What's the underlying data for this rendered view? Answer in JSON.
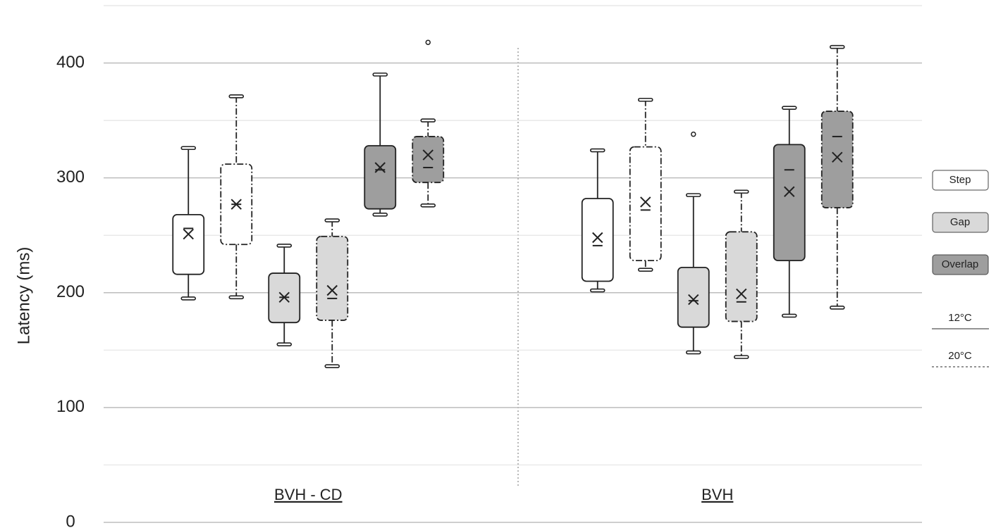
{
  "chart_data": {
    "type": "box",
    "ylabel": "Latency (ms)",
    "ylim": [
      0,
      450
    ],
    "yticks": [
      0,
      100,
      200,
      300,
      400
    ],
    "minor_yticks": [
      50,
      150,
      250,
      350,
      450
    ],
    "grid": true,
    "categories": [
      "BVH - CD",
      "BVH"
    ],
    "temperatures": [
      {
        "name": "12°C",
        "dash": "solid"
      },
      {
        "name": "20°C",
        "dash": "dash-dot"
      }
    ],
    "series": [
      {
        "name": "Step",
        "color": "#ffffff",
        "temperatures": [
          {
            "values": [
              {
                "min": 195,
                "q1": 216,
                "median": 256,
                "q3": 268,
                "max": 326,
                "mean": 251,
                "outliers": []
              },
              {
                "min": 202,
                "q1": 210,
                "median": 241,
                "q3": 282,
                "max": 324,
                "mean": 248,
                "outliers": []
              }
            ]
          },
          {
            "values": [
              {
                "min": 196,
                "q1": 242,
                "median": 277,
                "q3": 312,
                "max": 371,
                "mean": 277,
                "outliers": []
              },
              {
                "min": 220,
                "q1": 228,
                "median": 272,
                "q3": 327,
                "max": 368,
                "mean": 279,
                "outliers": []
              }
            ]
          }
        ]
      },
      {
        "name": "Gap",
        "color": "#d9d9d9",
        "temperatures": [
          {
            "values": [
              {
                "min": 155,
                "q1": 174,
                "median": 196,
                "q3": 217,
                "max": 241,
                "mean": 196,
                "outliers": []
              },
              {
                "min": 148,
                "q1": 170,
                "median": 193,
                "q3": 222,
                "max": 285,
                "mean": 194,
                "outliers": [
                  338
                ]
              }
            ]
          },
          {
            "values": [
              {
                "min": 136,
                "q1": 176,
                "median": 195,
                "q3": 249,
                "max": 263,
                "mean": 202,
                "outliers": []
              },
              {
                "min": 144,
                "q1": 175,
                "median": 192,
                "q3": 253,
                "max": 288,
                "mean": 199,
                "outliers": []
              }
            ]
          }
        ]
      },
      {
        "name": "Overlap",
        "color": "#9e9e9e",
        "temperatures": [
          {
            "values": [
              {
                "min": 268,
                "q1": 273,
                "median": 307,
                "q3": 328,
                "max": 390,
                "mean": 309,
                "outliers": []
              },
              {
                "min": 180,
                "q1": 228,
                "median": 307,
                "q3": 329,
                "max": 361,
                "mean": 288,
                "outliers": []
              }
            ]
          },
          {
            "values": [
              {
                "min": 276,
                "q1": 296,
                "median": 309,
                "q3": 336,
                "max": 350,
                "mean": 320,
                "outliers": [
                  418
                ]
              },
              {
                "min": 187,
                "q1": 274,
                "median": 336,
                "q3": 358,
                "max": 414,
                "mean": 318,
                "outliers": []
              }
            ]
          }
        ]
      }
    ]
  }
}
